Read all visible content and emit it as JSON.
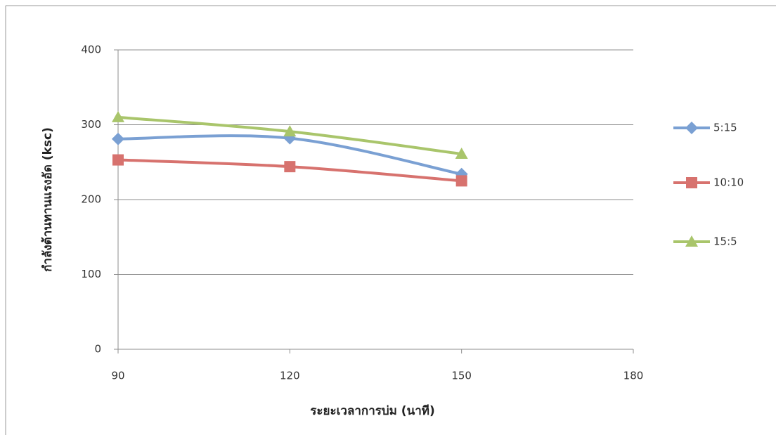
{
  "chart_data": {
    "type": "line",
    "x_label": "ระยะเวลาการบ่ม (นาที)",
    "y_label": "กำลังต้านทานแรงอัด (ksc)",
    "x": [
      90,
      120,
      150
    ],
    "xlim": [
      90,
      180
    ],
    "xticks": [
      90,
      120,
      150,
      180
    ],
    "ylim": [
      0,
      400
    ],
    "yticks": [
      0,
      100,
      200,
      300,
      400
    ],
    "grid": true,
    "smooth": true,
    "legend": "right",
    "series": [
      {
        "name": "5:15",
        "color": "#7aa0d3",
        "marker": "diamond",
        "values": [
          281,
          282,
          234
        ]
      },
      {
        "name": "10:10",
        "color": "#d7726e",
        "marker": "square",
        "values": [
          253,
          244,
          225
        ]
      },
      {
        "name": "15:5",
        "color": "#a9c56b",
        "marker": "triangle",
        "values": [
          310,
          291,
          261
        ]
      }
    ]
  }
}
